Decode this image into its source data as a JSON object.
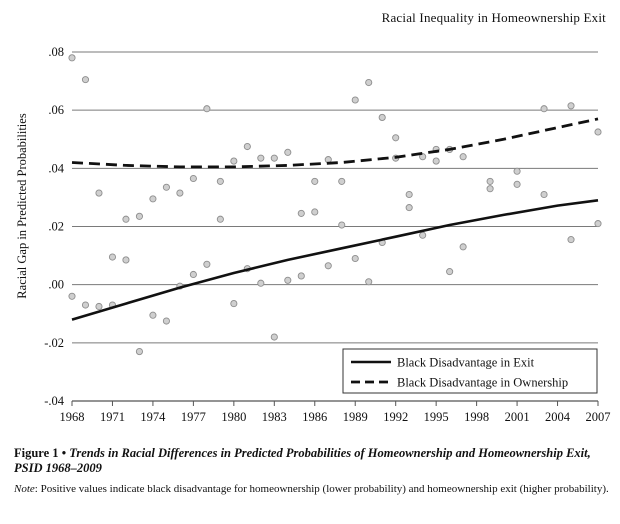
{
  "header": {
    "title": "Racial Inequality in Homeownership Exit"
  },
  "chart_data": {
    "type": "scatter",
    "title": "",
    "ylabel": "Racial Gap in Predicted Probabilities",
    "xlabel": "",
    "xlim": [
      1968,
      2007
    ],
    "ylim": [
      -0.04,
      0.08
    ],
    "x_ticks": [
      "1968",
      "1971",
      "1974",
      "1977",
      "1980",
      "1983",
      "1986",
      "1989",
      "1992",
      "1995",
      "1998",
      "2001",
      "2004",
      "2007"
    ],
    "y_ticks": [
      ".08",
      ".06",
      ".04",
      ".02",
      ".00",
      "-.02",
      "-.04"
    ],
    "y_tick_values": [
      0.08,
      0.06,
      0.04,
      0.02,
      0.0,
      -0.02,
      -0.04
    ],
    "x_tick_values": [
      1968,
      1971,
      1974,
      1977,
      1980,
      1983,
      1986,
      1989,
      1992,
      1995,
      1998,
      2001,
      2004,
      2007
    ],
    "grid": "horizontal",
    "legend_position": "bottom-right",
    "legend": [
      {
        "label": "Black  Disadvantage in Exit",
        "style": "solid"
      },
      {
        "label": "Black Disadvantage in Ownership",
        "style": "dashed"
      }
    ],
    "scatter_points": [
      [
        1968,
        0.078
      ],
      [
        1968,
        -0.004
      ],
      [
        1969,
        0.0705
      ],
      [
        1969,
        -0.007
      ],
      [
        1970,
        0.0315
      ],
      [
        1970,
        -0.0075
      ],
      [
        1971,
        0.0095
      ],
      [
        1971,
        -0.007
      ],
      [
        1972,
        0.0225
      ],
      [
        1972,
        0.0085
      ],
      [
        1973,
        0.0235
      ],
      [
        1973,
        -0.023
      ],
      [
        1974,
        0.0295
      ],
      [
        1974,
        -0.0105
      ],
      [
        1975,
        0.0335
      ],
      [
        1975,
        -0.0125
      ],
      [
        1976,
        0.0315
      ],
      [
        1976,
        -0.0005
      ],
      [
        1977,
        0.0365
      ],
      [
        1977,
        0.0035
      ],
      [
        1978,
        0.0605
      ],
      [
        1978,
        0.007
      ],
      [
        1979,
        0.0355
      ],
      [
        1979,
        0.0225
      ],
      [
        1980,
        0.0425
      ],
      [
        1980,
        -0.0065
      ],
      [
        1981,
        0.0475
      ],
      [
        1981,
        0.0055
      ],
      [
        1982,
        0.0435
      ],
      [
        1982,
        0.0005
      ],
      [
        1983,
        0.0435
      ],
      [
        1983,
        -0.018
      ],
      [
        1984,
        0.0455
      ],
      [
        1984,
        0.0015
      ],
      [
        1985,
        0.0245
      ],
      [
        1985,
        0.003
      ],
      [
        1986,
        0.0355
      ],
      [
        1986,
        0.025
      ],
      [
        1987,
        0.043
      ],
      [
        1987,
        0.0065
      ],
      [
        1988,
        0.0355
      ],
      [
        1988,
        0.0205
      ],
      [
        1989,
        0.0635
      ],
      [
        1989,
        0.009
      ],
      [
        1990,
        0.0695
      ],
      [
        1990,
        0.001
      ],
      [
        1991,
        0.0575
      ],
      [
        1991,
        0.0145
      ],
      [
        1992,
        0.0505
      ],
      [
        1992,
        0.0435
      ],
      [
        1993,
        0.031
      ],
      [
        1993,
        0.0265
      ],
      [
        1994,
        0.044
      ],
      [
        1994,
        0.017
      ],
      [
        1995,
        0.0465
      ],
      [
        1995,
        0.0425
      ],
      [
        1996,
        0.0465
      ],
      [
        1996,
        0.0045
      ],
      [
        1997,
        0.044
      ],
      [
        1997,
        0.013
      ],
      [
        1999,
        0.0355
      ],
      [
        1999,
        0.033
      ],
      [
        2001,
        0.039
      ],
      [
        2001,
        0.0345
      ],
      [
        2003,
        0.0605
      ],
      [
        2003,
        0.031
      ],
      [
        2005,
        0.0615
      ],
      [
        2005,
        0.0155
      ],
      [
        2007,
        0.0525
      ],
      [
        2007,
        0.021
      ]
    ],
    "series": [
      {
        "name": "Black  Disadvantage in Exit",
        "style": "solid",
        "x": [
          1968,
          1972,
          1976,
          1980,
          1984,
          1988,
          1992,
          1996,
          2000,
          2004,
          2007
        ],
        "y": [
          -0.012,
          -0.0065,
          -0.001,
          0.004,
          0.0085,
          0.0125,
          0.0165,
          0.0205,
          0.024,
          0.0272,
          0.029
        ]
      },
      {
        "name": "Black Disadvantage in Ownership",
        "style": "dashed",
        "x": [
          1968,
          1972,
          1976,
          1980,
          1984,
          1988,
          1992,
          1996,
          2000,
          2004,
          2007
        ],
        "y": [
          0.042,
          0.041,
          0.0405,
          0.0405,
          0.041,
          0.042,
          0.0438,
          0.0465,
          0.05,
          0.054,
          0.057
        ]
      }
    ]
  },
  "caption": {
    "label": "Figure 1",
    "bullet": "•",
    "text": "Trends in Racial Differences in Predicted Probabilities of Homeownership and Homeownership Exit, PSID 1968–2009"
  },
  "note": {
    "label": "Note",
    "text": ": Positive values indicate black disadvantage for homeownership (lower probability) and homeownership exit (higher probability)."
  }
}
